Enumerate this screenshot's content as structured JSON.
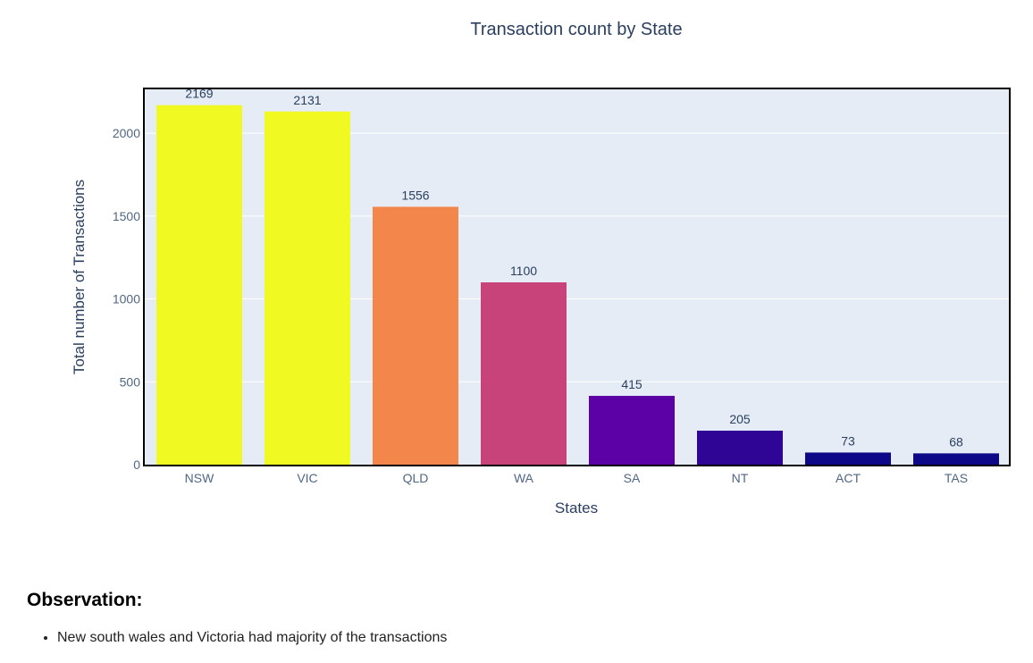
{
  "chart_data": {
    "type": "bar",
    "title": "Transaction count by State",
    "xlabel": "States",
    "ylabel": "Total number of Transactions",
    "categories": [
      "NSW",
      "VIC",
      "QLD",
      "WA",
      "SA",
      "NT",
      "ACT",
      "TAS"
    ],
    "values": [
      2169,
      2131,
      1556,
      1100,
      415,
      205,
      73,
      68
    ],
    "data_labels": [
      "2169",
      "2131",
      "1556",
      "1100",
      "415",
      "205",
      "73",
      "68"
    ],
    "ylim": [
      0,
      2270
    ],
    "yticks": [
      0,
      500,
      1000,
      1500,
      2000
    ],
    "ytick_labels": [
      "0",
      "500",
      "1000",
      "1500",
      "2000"
    ],
    "grid": true,
    "colorscale": "plasma",
    "colors": [
      "#f0f921",
      "#f0f921",
      "#f3864b",
      "#c8437a",
      "#5c01a6",
      "#2e0595",
      "#0d0887",
      "#0d0887"
    ],
    "plot_background": "#e5ecf6"
  },
  "observation": {
    "heading": "Observation:",
    "items": [
      "New south wales and Victoria had majority of the transactions"
    ]
  }
}
